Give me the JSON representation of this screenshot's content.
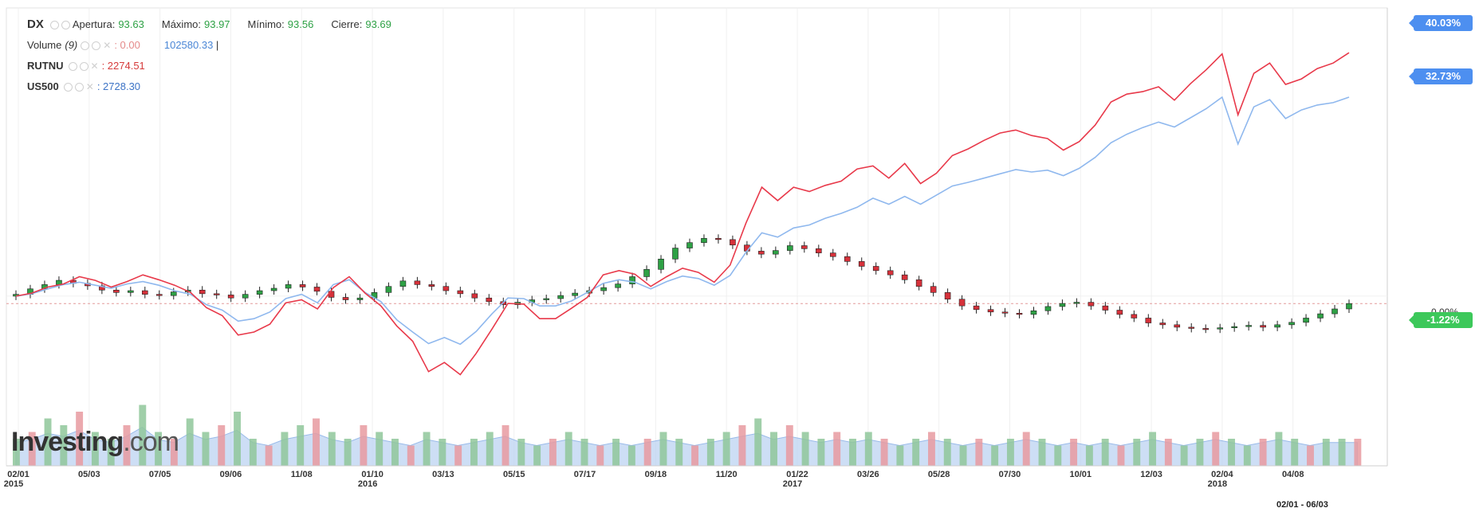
{
  "legend": {
    "symbol": "DX",
    "open_label": "Apertura:",
    "open_value": "93.63",
    "high_label": "Máximo:",
    "high_value": "93.97",
    "low_label": "Mínimo:",
    "low_value": "93.56",
    "close_label": "Cierre:",
    "close_value": "93.69",
    "volume_label": "Volume",
    "volume_param": "(9)",
    "volume_value": ": 0.00",
    "volume_avg": "102580.33",
    "rutnu_label": "RUTNU",
    "rutnu_value": ": 2274.51",
    "us500_label": "US500",
    "us500_value": ": 2728.30"
  },
  "tags": {
    "rutnu": "40.03%",
    "us500": "32.73%",
    "dx": "-1.22%",
    "zero": "0.00%"
  },
  "range_label": "02/01 - 06/03",
  "watermark": {
    "brand": "Investing",
    "suffix": ".com"
  },
  "colors": {
    "up": "#2ea145",
    "down": "#d6313a",
    "rutnu_line": "#e8394a",
    "us500_line": "#8fb8ee",
    "vol_up": "#8fc79a",
    "vol_down": "#e89aa0",
    "vol_area": "#b9d1f2",
    "tag_red": "#e64a4a",
    "tag_blue": "#4d8ff0",
    "tag_green": "#3cc85a"
  },
  "chart_data": {
    "type": "line",
    "title": "",
    "xlabel": "",
    "ylabel": "",
    "percent_axis": true,
    "ylim_percent": [
      -25,
      45
    ],
    "x_ticks": [
      {
        "label": "02/01",
        "sub": "2015"
      },
      {
        "label": "05/03",
        "sub": ""
      },
      {
        "label": "07/05",
        "sub": ""
      },
      {
        "label": "09/06",
        "sub": ""
      },
      {
        "label": "11/08",
        "sub": ""
      },
      {
        "label": "01/10",
        "sub": "2016"
      },
      {
        "label": "03/13",
        "sub": ""
      },
      {
        "label": "05/15",
        "sub": ""
      },
      {
        "label": "07/17",
        "sub": ""
      },
      {
        "label": "09/18",
        "sub": ""
      },
      {
        "label": "11/20",
        "sub": ""
      },
      {
        "label": "01/22",
        "sub": "2017"
      },
      {
        "label": "03/26",
        "sub": ""
      },
      {
        "label": "05/28",
        "sub": ""
      },
      {
        "label": "07/30",
        "sub": ""
      },
      {
        "label": "10/01",
        "sub": ""
      },
      {
        "label": "12/03",
        "sub": ""
      },
      {
        "label": "02/04",
        "sub": "2018"
      },
      {
        "label": "04/08",
        "sub": ""
      }
    ],
    "series": [
      {
        "name": "RUTNU",
        "kind": "line",
        "values": [
          0,
          0.5,
          1.5,
          2,
          3.2,
          2.6,
          1.5,
          2.4,
          3.5,
          2.7,
          1.8,
          0.6,
          -1.9,
          -3.2,
          -6.4,
          -5.9,
          -4.6,
          -1.1,
          -0.6,
          -2.1,
          1.4,
          3.2,
          0.5,
          -1.6,
          -4.9,
          -7.4,
          -12.4,
          -10.9,
          -12.9,
          -9.4,
          -5.4,
          -1.2,
          -1.3,
          -3.7,
          -3.7,
          -2.0,
          -0.2,
          3.5,
          4.2,
          3.6,
          1.6,
          3.2,
          4.6,
          3.9,
          2.3,
          5.1,
          12.0,
          17.9,
          15.7,
          17.9,
          17.2,
          18.2,
          18.9,
          20.9,
          21.4,
          19.4,
          21.8,
          18.5,
          20.2,
          23.1,
          24.2,
          25.6,
          26.8,
          27.3,
          26.4,
          25.9,
          24.0,
          25.4,
          28.1,
          31.9,
          33.2,
          33.6,
          34.4,
          32.2,
          34.9,
          37.2,
          39.8,
          29.8,
          36.6,
          38.3,
          34.8,
          35.7,
          37.4,
          38.3,
          40.0
        ]
      },
      {
        "name": "US500",
        "kind": "line",
        "values": [
          0,
          0.4,
          1.2,
          1.9,
          2.3,
          1.8,
          1.3,
          2.0,
          2.4,
          1.8,
          0.9,
          0.3,
          -1.4,
          -2.3,
          -4.1,
          -3.7,
          -2.6,
          -0.4,
          0.3,
          -1.1,
          1.9,
          2.7,
          0.6,
          -0.9,
          -3.9,
          -5.9,
          -7.8,
          -6.8,
          -7.9,
          -5.8,
          -2.9,
          -0.3,
          -0.4,
          -1.6,
          -1.6,
          -0.8,
          0.6,
          2.1,
          2.7,
          2.3,
          1.2,
          2.4,
          3.3,
          2.9,
          1.8,
          3.4,
          7.2,
          10.4,
          9.7,
          11.2,
          11.7,
          12.8,
          13.6,
          14.6,
          16.1,
          15.1,
          16.4,
          15.1,
          16.6,
          18.1,
          18.7,
          19.4,
          20.1,
          20.8,
          20.4,
          20.7,
          19.8,
          21.0,
          22.8,
          25.2,
          26.6,
          27.7,
          28.6,
          27.8,
          29.3,
          30.8,
          32.7,
          25.0,
          31.1,
          32.3,
          29.2,
          30.6,
          31.4,
          31.8,
          32.7
        ]
      },
      {
        "name": "DX",
        "kind": "candlestick",
        "close_percent": [
          0.3,
          1.2,
          1.9,
          2.6,
          2.1,
          1.7,
          1.0,
          0.6,
          0.9,
          0.3,
          0.1,
          0.7,
          1.0,
          0.4,
          0.2,
          -0.3,
          0.3,
          0.9,
          1.3,
          1.9,
          1.5,
          0.8,
          -0.2,
          -0.6,
          -0.3,
          0.6,
          1.6,
          2.5,
          1.9,
          1.6,
          0.9,
          0.4,
          -0.3,
          -0.9,
          -1.4,
          -1.0,
          -0.6,
          -0.4,
          0.1,
          0.5,
          0.9,
          1.4,
          2.0,
          3.2,
          4.4,
          6.1,
          7.9,
          8.8,
          9.5,
          9.3,
          8.4,
          7.4,
          6.9,
          7.5,
          8.3,
          7.8,
          7.1,
          6.5,
          5.7,
          4.9,
          4.2,
          3.5,
          2.7,
          1.6,
          0.6,
          -0.5,
          -1.6,
          -2.2,
          -2.6,
          -2.8,
          -3.0,
          -2.4,
          -1.7,
          -1.2,
          -1.0,
          -1.6,
          -2.3,
          -3.0,
          -3.6,
          -4.4,
          -4.7,
          -5.1,
          -5.3,
          -5.4,
          -5.2,
          -5.0,
          -4.8,
          -5.1,
          -4.7,
          -4.3,
          -3.6,
          -2.9,
          -2.1,
          -1.22
        ]
      },
      {
        "name": "Volume",
        "kind": "bar",
        "values": [
          4,
          5,
          7,
          6,
          8,
          5,
          4,
          6,
          9,
          5,
          4,
          7,
          5,
          6,
          8,
          4,
          3,
          5,
          6,
          7,
          5,
          4,
          6,
          5,
          4,
          3,
          5,
          4,
          3,
          4,
          5,
          6,
          4,
          3,
          4,
          5,
          4,
          3,
          4,
          3,
          4,
          5,
          4,
          3,
          4,
          5,
          6,
          7,
          5,
          6,
          5,
          4,
          5,
          4,
          5,
          4,
          3,
          4,
          5,
          4,
          3,
          4,
          3,
          4,
          5,
          4,
          3,
          4,
          3,
          4,
          3,
          4,
          5,
          4,
          3,
          4,
          5,
          4,
          3,
          4,
          5,
          4,
          3,
          4,
          4,
          4
        ]
      }
    ]
  }
}
